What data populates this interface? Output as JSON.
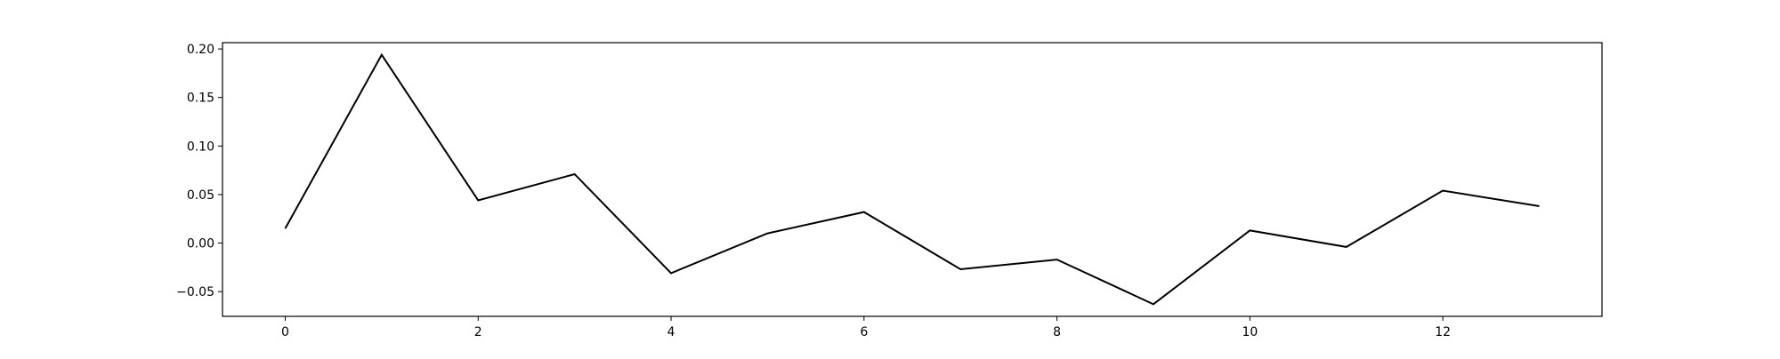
{
  "chart_data": {
    "type": "line",
    "title": "",
    "xlabel": "",
    "ylabel": "",
    "x": [
      0,
      1,
      2,
      3,
      4,
      5,
      6,
      7,
      8,
      9,
      10,
      11,
      12,
      13
    ],
    "series": [
      {
        "values": [
          0.015,
          0.194,
          0.044,
          0.071,
          -0.031,
          0.01,
          0.032,
          -0.027,
          -0.017,
          -0.063,
          0.013,
          -0.004,
          0.054,
          0.038
        ],
        "color": "#000000"
      }
    ],
    "xlim": [
      -0.65,
      13.65
    ],
    "ylim": [
      -0.0755,
      0.2065
    ],
    "xticks": [
      0,
      2,
      4,
      6,
      8,
      10,
      12
    ],
    "xtick_labels": [
      "0",
      "2",
      "4",
      "6",
      "8",
      "10",
      "12"
    ],
    "yticks": [
      -0.05,
      0.0,
      0.05,
      0.1,
      0.15,
      0.2
    ],
    "ytick_labels": [
      "−0.05",
      "0.00",
      "0.05",
      "0.10",
      "0.15",
      "0.20"
    ],
    "grid": false,
    "legend": "none"
  }
}
